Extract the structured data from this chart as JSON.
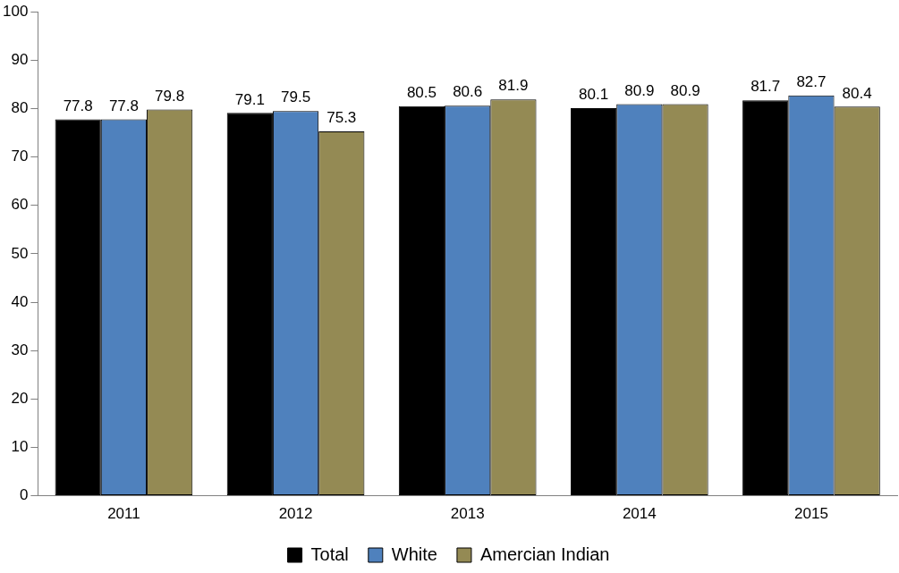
{
  "chart_data": {
    "type": "bar",
    "categories": [
      "2011",
      "2012",
      "2013",
      "2014",
      "2015"
    ],
    "series": [
      {
        "name": "Total",
        "color": "#000000",
        "values": [
          77.8,
          79.1,
          80.5,
          80.1,
          81.7
        ]
      },
      {
        "name": "White",
        "color": "#4f81bd",
        "values": [
          77.8,
          79.5,
          80.6,
          80.9,
          82.7
        ]
      },
      {
        "name": "Amercian Indian",
        "color": "#948a54",
        "values": [
          79.8,
          75.3,
          81.9,
          80.9,
          80.4
        ]
      }
    ],
    "ylim": [
      0,
      100
    ],
    "yticks": [
      0,
      10,
      20,
      30,
      40,
      50,
      60,
      70,
      80,
      90,
      100
    ],
    "grid": false,
    "legend": "bottom",
    "data_labels": true
  }
}
